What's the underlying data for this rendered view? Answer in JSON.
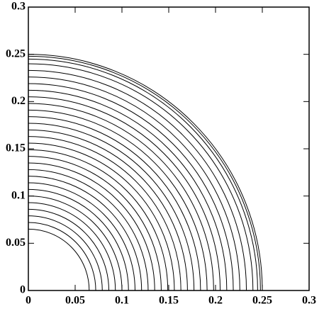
{
  "chart_data": {
    "type": "contour",
    "xlim": [
      0,
      0.3
    ],
    "ylim": [
      0,
      0.3
    ],
    "xticks": [
      0,
      0.05,
      0.1,
      0.15,
      0.2,
      0.25,
      0.3
    ],
    "yticks": [
      0,
      0.05,
      0.1,
      0.15,
      0.2,
      0.25,
      0.3
    ],
    "color": "#000000",
    "levels": [
      0.065,
      0.072,
      0.079,
      0.086,
      0.093,
      0.1,
      0.107,
      0.114,
      0.121,
      0.128,
      0.135,
      0.142,
      0.149,
      0.156,
      0.163,
      0.17,
      0.177,
      0.184,
      0.191,
      0.198,
      0.205,
      0.212,
      0.219,
      0.226,
      0.233,
      0.24,
      0.245,
      0.248,
      0.25
    ]
  }
}
